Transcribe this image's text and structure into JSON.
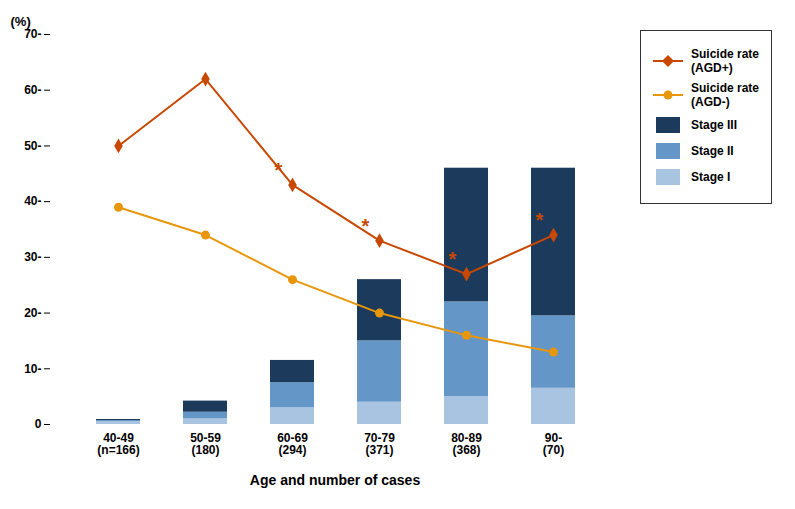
{
  "chart_data": {
    "type": "bar",
    "stacked": true,
    "categories": [
      "40-49\n(n=166)",
      "50-59\n(180)",
      "60-69\n(294)",
      "70-79\n(371)",
      "80-89\n(368)",
      "90-\n(70)"
    ],
    "series": [
      {
        "name": "Stage I",
        "type": "bar",
        "color": "#a8c4e0",
        "values": [
          0.5,
          1.0,
          3.0,
          4.0,
          5.0,
          6.5
        ]
      },
      {
        "name": "Stage II",
        "type": "bar",
        "color": "#6496c8",
        "values": [
          0.2,
          1.2,
          4.5,
          11.0,
          17.0,
          13.0
        ]
      },
      {
        "name": "Stage III",
        "type": "bar",
        "color": "#1b3a5c",
        "values": [
          0.2,
          2.0,
          4.0,
          11.0,
          24.0,
          26.5
        ]
      },
      {
        "name": "Suicide rate\n(AGD+)",
        "type": "line",
        "marker": "diamond",
        "color": "#c84800",
        "values": [
          50,
          62,
          43,
          33,
          27,
          34
        ]
      },
      {
        "name": "Suicide rate\n(AGD-)",
        "type": "line",
        "marker": "circle",
        "color": "#e8960a",
        "values": [
          39,
          34,
          26,
          20,
          16,
          13
        ]
      }
    ],
    "annotations": [
      {
        "text": "*",
        "category": "60-69\n(294)",
        "series": "Suicide rate\n(AGD+)",
        "color": "#c84800"
      },
      {
        "text": "*",
        "category": "70-79\n(371)",
        "series": "Suicide rate\n(AGD+)",
        "color": "#c84800"
      },
      {
        "text": "*",
        "category": "80-89\n(368)",
        "series": "Suicide rate\n(AGD+)",
        "color": "#c84800"
      },
      {
        "text": "*",
        "category": "90-\n(70)",
        "series": "Suicide rate\n(AGD+)",
        "color": "#c84800"
      }
    ],
    "x_label": "Age and number of cases",
    "y_label": "(%)",
    "ylim": [
      0,
      70
    ],
    "yticks": [
      0,
      {
        "value": 10,
        "label": "10-"
      },
      {
        "value": 20,
        "label": "20-"
      },
      {
        "value": 30,
        "label": "30-"
      },
      {
        "value": 40,
        "label": "40-"
      },
      {
        "value": 50,
        "label": "50-"
      },
      {
        "value": 60,
        "label": "60-"
      },
      {
        "value": 70,
        "label": "70-"
      }
    ],
    "grid": false,
    "legend": "right"
  }
}
